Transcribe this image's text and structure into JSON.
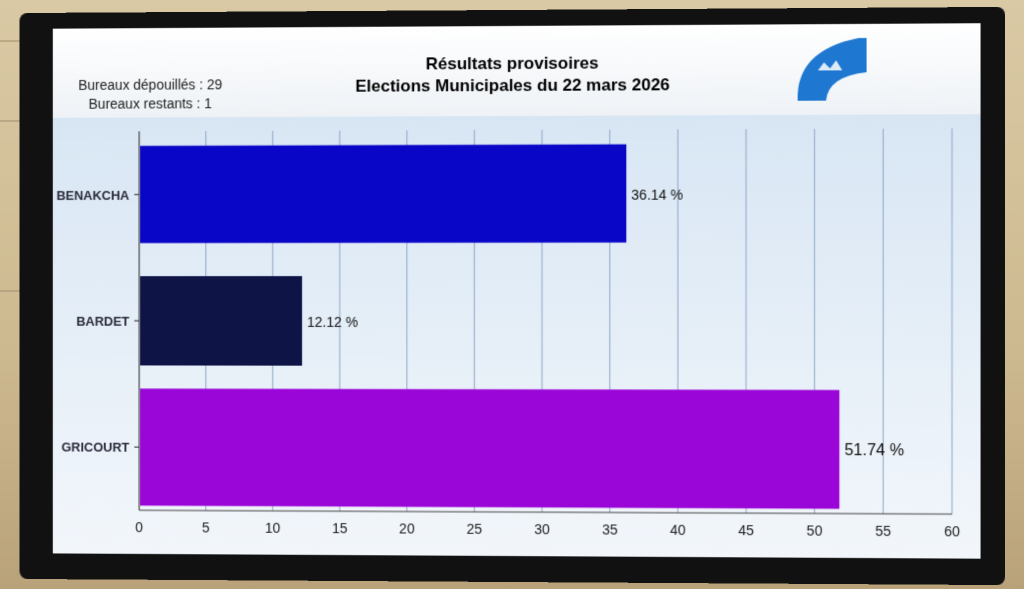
{
  "header": {
    "counts_done": "Bureaux dépouillés : 29",
    "counts_left": "Bureaux restants : 1",
    "title_line1": "Résultats provisoires",
    "title_line2": "Elections Municipales du 22 mars 2026"
  },
  "colors": {
    "benakcha": "#0a06c8",
    "bardet": "#0e1546",
    "gricourt": "#9b06d8"
  },
  "chart_data": {
    "type": "bar",
    "orientation": "horizontal",
    "categories": [
      "BENAKCHA",
      "BARDET",
      "GRICOURT"
    ],
    "values": [
      36.14,
      12.12,
      51.74
    ],
    "value_labels": [
      "36.14 %",
      "12.12 %",
      "51.74 %"
    ],
    "xlim": [
      0,
      60
    ],
    "xticks": [
      0,
      5,
      10,
      15,
      20,
      25,
      30,
      35,
      40,
      45,
      50,
      55,
      60
    ],
    "grid": true,
    "title": "Résultats provisoires"
  }
}
